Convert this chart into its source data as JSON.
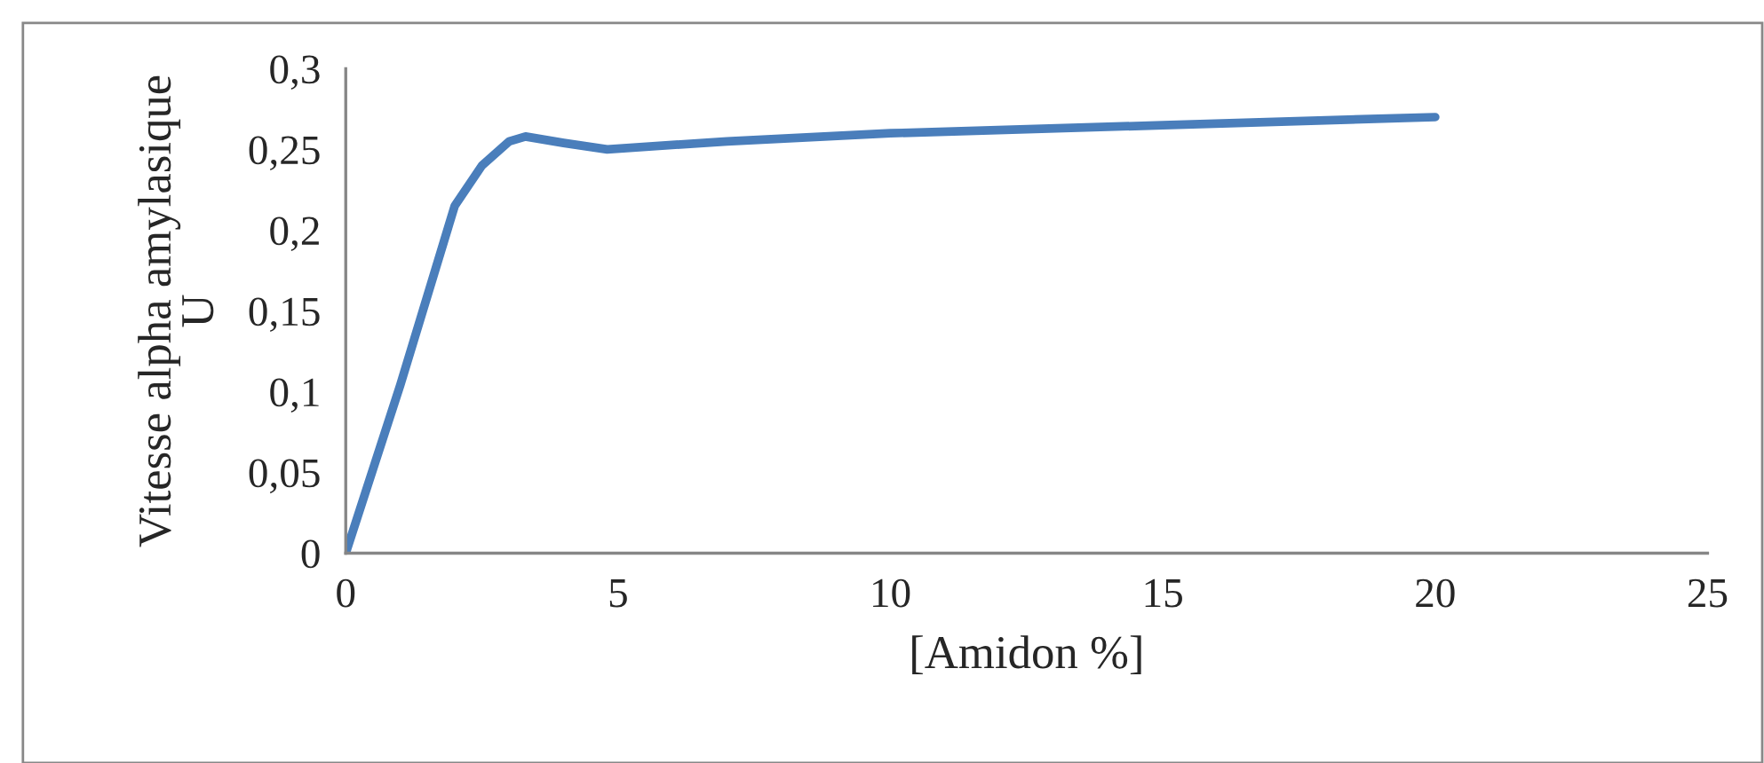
{
  "chart_data": {
    "type": "line",
    "xlabel": "[Amidon %]",
    "ylabel": "Vitesse alpha amylasique\nU",
    "x": [
      0,
      1,
      2,
      2.5,
      3,
      3.3,
      4,
      4.8,
      7,
      10,
      15,
      20
    ],
    "series": [
      {
        "color": "#4a7ebb",
        "values": [
          0,
          0.104,
          0.215,
          0.24,
          0.255,
          0.258,
          0.254,
          0.25,
          0.255,
          0.26,
          0.265,
          0.27
        ]
      }
    ],
    "xlim": [
      0,
      25
    ],
    "xticks": [
      0,
      5,
      10,
      15,
      20,
      25
    ],
    "ylim": [
      0,
      0.3
    ],
    "yticks": [
      {
        "value": 0,
        "label": "0"
      },
      {
        "value": 0.05,
        "label": "0,05"
      },
      {
        "value": 0.1,
        "label": "0,1"
      },
      {
        "value": 0.15,
        "label": "0,15"
      },
      {
        "value": 0.2,
        "label": "0,2"
      },
      {
        "value": 0.25,
        "label": "0,25"
      },
      {
        "value": 0.3,
        "label": "0,3"
      }
    ],
    "grid": false,
    "legend": false,
    "marker": "none",
    "line_style": "solid"
  }
}
